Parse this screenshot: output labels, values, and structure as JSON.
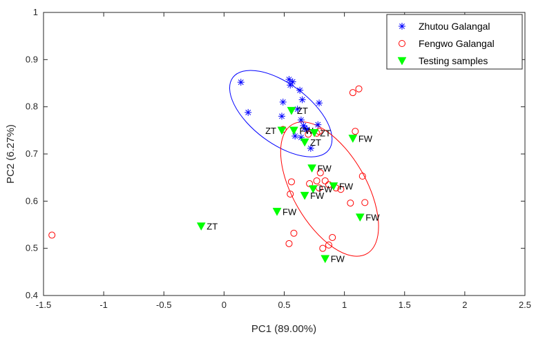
{
  "chart_data": {
    "type": "scatter",
    "xlabel": "PC1 (89.00%)",
    "ylabel": "PC2 (6.27%)",
    "xlim": [
      -1.5,
      2.5
    ],
    "ylim": [
      0.4,
      1.0
    ],
    "xticks": [
      -1.5,
      -1,
      -0.5,
      0,
      0.5,
      1,
      1.5,
      2,
      2.5
    ],
    "xtick_labels": [
      "-1.5",
      "-1",
      "-0.5",
      "0",
      "0.5",
      "1",
      "1.5",
      "2",
      "2.5"
    ],
    "yticks": [
      0.4,
      0.5,
      0.6,
      0.7,
      0.8,
      0.9,
      1.0
    ],
    "ytick_labels": [
      "0.4",
      "0.5",
      "0.6",
      "0.7",
      "0.8",
      "0.9",
      "1"
    ],
    "grid": false,
    "legend_position": "top-right",
    "colors": {
      "zhutou": "#0000ff",
      "fengwo": "#ff0000",
      "testing": "#00ff00",
      "label_blue": "#0000ff"
    },
    "series": [
      {
        "name": "Zhutou Galangal",
        "marker": "asterisk",
        "points": [
          [
            0.14,
            0.852
          ],
          [
            0.2,
            0.788
          ],
          [
            0.54,
            0.858
          ],
          [
            0.55,
            0.846
          ],
          [
            0.57,
            0.853
          ],
          [
            0.63,
            0.835
          ],
          [
            0.65,
            0.815
          ],
          [
            0.49,
            0.81
          ],
          [
            0.48,
            0.78
          ],
          [
            0.61,
            0.795
          ],
          [
            0.64,
            0.772
          ],
          [
            0.66,
            0.76
          ],
          [
            0.67,
            0.755
          ],
          [
            0.59,
            0.738
          ],
          [
            0.64,
            0.735
          ],
          [
            0.69,
            0.752
          ],
          [
            0.72,
            0.712
          ],
          [
            0.78,
            0.762
          ],
          [
            0.79,
            0.808
          ]
        ]
      },
      {
        "name": "Fengwo Galangal",
        "marker": "circle",
        "points": [
          [
            -1.43,
            0.528
          ],
          [
            1.07,
            0.83
          ],
          [
            1.12,
            0.838
          ],
          [
            1.09,
            0.748
          ],
          [
            1.15,
            0.653
          ],
          [
            1.17,
            0.597
          ],
          [
            1.05,
            0.596
          ],
          [
            0.56,
            0.641
          ],
          [
            0.55,
            0.615
          ],
          [
            0.58,
            0.532
          ],
          [
            0.54,
            0.51
          ],
          [
            0.71,
            0.637
          ],
          [
            0.77,
            0.643
          ],
          [
            0.79,
            0.628
          ],
          [
            0.8,
            0.66
          ],
          [
            0.84,
            0.643
          ],
          [
            0.87,
            0.635
          ],
          [
            0.93,
            0.628
          ],
          [
            0.97,
            0.625
          ],
          [
            0.9,
            0.523
          ],
          [
            0.87,
            0.507
          ],
          [
            0.82,
            0.5
          ],
          [
            0.49,
            0.752
          ],
          [
            0.7,
            0.742
          ],
          [
            0.77,
            0.744
          ],
          [
            0.79,
            0.748
          ]
        ]
      },
      {
        "name": "Testing samples",
        "marker": "triangle-down",
        "points": [
          {
            "x": -0.19,
            "y": 0.547,
            "label": "ZT",
            "label_color": "blue"
          },
          {
            "x": 0.44,
            "y": 0.578,
            "label": "FW",
            "label_color": "blue"
          },
          {
            "x": 0.56,
            "y": 0.792,
            "label": "ZT"
          },
          {
            "x": 0.48,
            "y": 0.75,
            "label": "ZT",
            "label_side": "left"
          },
          {
            "x": 0.58,
            "y": 0.75,
            "label": "FW"
          },
          {
            "x": 0.75,
            "y": 0.745,
            "label": "ZT"
          },
          {
            "x": 0.67,
            "y": 0.725,
            "label": "ZT"
          },
          {
            "x": 1.07,
            "y": 0.733,
            "label": "FW"
          },
          {
            "x": 0.73,
            "y": 0.67,
            "label": "FW"
          },
          {
            "x": 0.74,
            "y": 0.626,
            "label": "FW"
          },
          {
            "x": 0.67,
            "y": 0.612,
            "label": "FW"
          },
          {
            "x": 0.91,
            "y": 0.632,
            "label": "FW"
          },
          {
            "x": 1.13,
            "y": 0.566,
            "label": "FW"
          },
          {
            "x": 0.84,
            "y": 0.478,
            "label": "FW"
          }
        ]
      }
    ],
    "ellipses": [
      {
        "group": "Zhutou Galangal",
        "cx": 0.472,
        "cy": 0.7855,
        "rx_deg": 37,
        "rx_len": 0.43,
        "ry_len": 0.0855,
        "color": "blue"
      },
      {
        "group": "Fengwo Galangal",
        "cx": 0.877,
        "cy": 0.6255,
        "rx_len": 0.52,
        "ry_len": 0.105,
        "rot_deg": 60,
        "color": "red"
      }
    ]
  }
}
